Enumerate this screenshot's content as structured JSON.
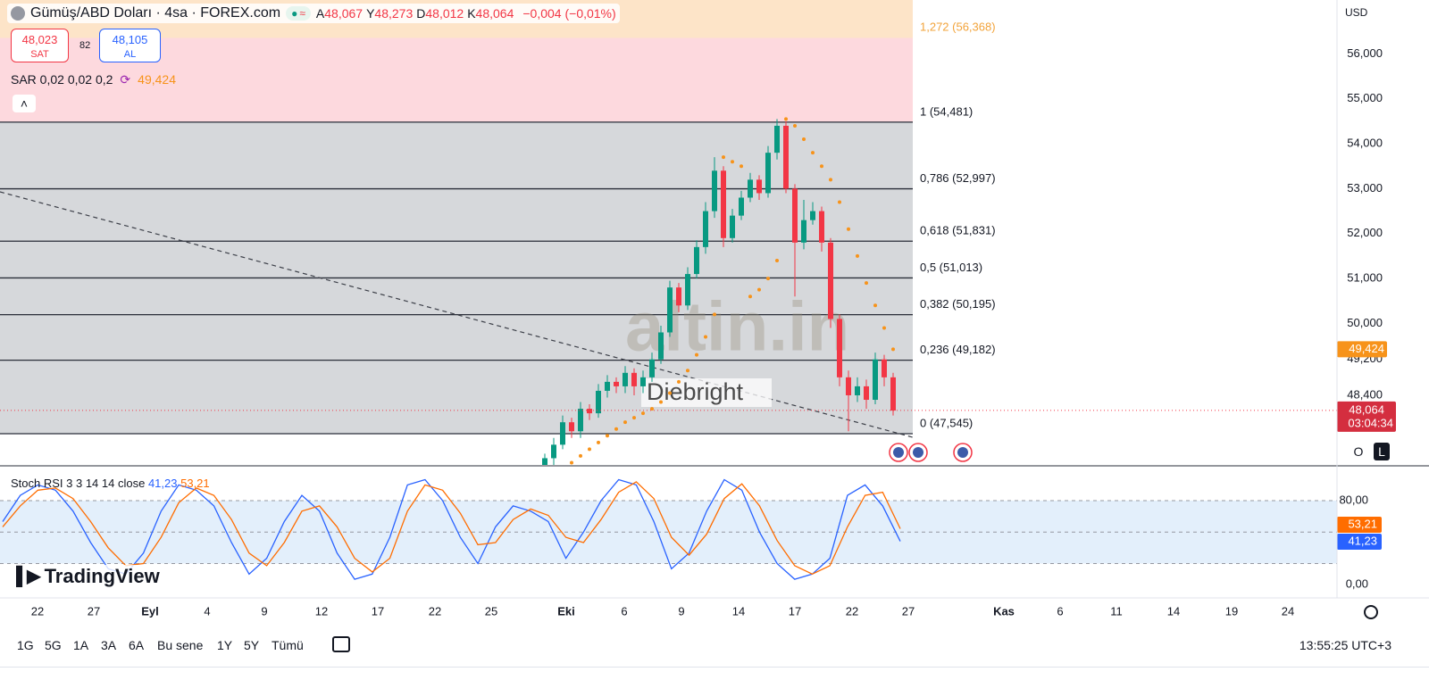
{
  "header": {
    "title": "Gümüş/ABD Doları · 4sa · FOREX.com",
    "ohlc_legend": [
      {
        "key": "A",
        "value": "48,067"
      },
      {
        "key": "Y",
        "value": "48,273"
      },
      {
        "key": "D",
        "value": "48,012"
      },
      {
        "key": "K",
        "value": "48,064"
      }
    ],
    "change": "−0,004 (−0,01%)",
    "sell": {
      "price": "48,023",
      "label": "SAT"
    },
    "spread": "82",
    "buy": {
      "price": "48,105",
      "label": "AL"
    },
    "currency": "USD",
    "scale_buttons": [
      "O",
      "L"
    ]
  },
  "chart_data": [
    {
      "type": "candlestick",
      "up_color": "#089981",
      "down_color": "#f23645",
      "open": [
        46.8,
        47.0,
        47.3,
        47.8,
        47.6,
        48.1,
        48.0,
        48.5,
        48.7,
        48.6,
        48.9,
        48.6,
        48.8,
        49.2,
        49.8,
        50.8,
        50.4,
        51.1,
        51.7,
        52.5,
        53.4,
        51.9,
        52.4,
        52.8,
        53.2,
        52.9,
        53.8,
        54.4,
        53.0,
        51.8,
        52.3,
        52.5,
        51.8,
        50.1,
        48.8,
        48.4,
        48.6,
        48.3,
        49.2,
        48.8
      ],
      "high": [
        47.1,
        47.45,
        47.95,
        47.9,
        48.25,
        48.2,
        48.65,
        48.85,
        48.8,
        49.05,
        49.0,
        48.95,
        49.35,
        49.95,
        50.95,
        50.9,
        51.25,
        51.85,
        52.7,
        53.7,
        53.5,
        52.55,
        52.95,
        53.35,
        53.3,
        53.95,
        54.55,
        54.5,
        53.1,
        52.75,
        52.7,
        52.6,
        51.9,
        50.2,
        48.95,
        48.8,
        48.75,
        49.35,
        49.3,
        48.9
      ],
      "low": [
        46.7,
        46.85,
        47.2,
        47.45,
        47.45,
        47.85,
        47.9,
        48.35,
        48.45,
        48.45,
        48.4,
        48.45,
        48.7,
        49.1,
        49.7,
        50.25,
        50.3,
        51.0,
        51.55,
        52.35,
        51.7,
        51.8,
        52.3,
        52.7,
        52.75,
        52.8,
        53.65,
        52.9,
        50.6,
        51.65,
        52.2,
        51.6,
        49.9,
        48.6,
        47.6,
        48.25,
        48.1,
        48.2,
        48.6,
        47.95
      ],
      "close": [
        47.0,
        47.3,
        47.8,
        47.6,
        48.1,
        48.0,
        48.5,
        48.7,
        48.6,
        48.9,
        48.6,
        48.8,
        49.2,
        49.8,
        50.8,
        50.4,
        51.1,
        51.7,
        52.5,
        53.4,
        51.9,
        52.4,
        52.8,
        53.2,
        52.9,
        53.8,
        54.4,
        53.0,
        51.8,
        52.3,
        52.5,
        51.8,
        50.1,
        48.8,
        48.4,
        48.6,
        48.3,
        49.2,
        48.8,
        48.06
      ],
      "sar": {
        "name": "SAR 0,02 0,02 0,2",
        "color": "#f7931a",
        "values": [
          46.6,
          46.65,
          46.75,
          46.9,
          47.05,
          47.2,
          47.35,
          47.5,
          47.65,
          47.8,
          47.9,
          48.0,
          48.1,
          48.25,
          48.45,
          48.7,
          48.95,
          49.3,
          49.7,
          50.2,
          53.7,
          53.6,
          53.5,
          50.6,
          50.75,
          51.0,
          51.4,
          54.55,
          54.4,
          54.1,
          53.8,
          53.5,
          53.2,
          52.7,
          52.1,
          51.5,
          50.9,
          50.4,
          49.9,
          49.424
        ],
        "last": {
          "value": 49.424,
          "label": "49,424"
        }
      },
      "last_price": {
        "value": 48.064,
        "label": "48,064"
      },
      "countdown": "03:04:34",
      "fib_levels": [
        {
          "value": 56.368,
          "label": "1,272 (56,368)",
          "color": "#f2a33a",
          "fill": "#fde4c8"
        },
        {
          "value": 54.481,
          "label": "1 (54,481)",
          "color": "#131722",
          "fill": "#fdd9de"
        },
        {
          "value": 52.997,
          "label": "0,786 (52,997)",
          "color": "#131722",
          "fill": "#d6d8db"
        },
        {
          "value": 51.831,
          "label": "0,618 (51,831)",
          "color": "#131722",
          "fill": "#d6d8db"
        },
        {
          "value": 51.013,
          "label": "0,5 (51,013)",
          "color": "#131722",
          "fill": "#d6d8db"
        },
        {
          "value": 50.195,
          "label": "0,382 (50,195)",
          "color": "#131722",
          "fill": "#d6d8db"
        },
        {
          "value": 49.182,
          "label": "0,236 (49,182)",
          "color": "#131722",
          "fill": "#d6d8db"
        },
        {
          "value": 47.545,
          "label": "0 (47,545)",
          "color": "#131722",
          "fill": "#d6d8db"
        }
      ],
      "ylim": [
        46.85,
        57.2
      ],
      "yticks": [
        {
          "value": 48.4,
          "label": "48,400"
        },
        {
          "value": 49.2,
          "label": "49,200"
        },
        {
          "value": 50,
          "label": "50,000"
        },
        {
          "value": 51,
          "label": "51,000"
        },
        {
          "value": 52,
          "label": "52,000"
        },
        {
          "value": 53,
          "label": "53,000"
        },
        {
          "value": 54,
          "label": "54,000"
        },
        {
          "value": 55,
          "label": "55,000"
        },
        {
          "value": 56,
          "label": "56,000"
        }
      ],
      "watermark": [
        "altin.in",
        "Diebright"
      ]
    },
    {
      "type": "line",
      "title": "Stoch RSI 3 3 14 14 close",
      "series": [
        {
          "color": "#2962ff",
          "values": [
            60,
            85,
            95,
            90,
            70,
            40,
            15,
            10,
            30,
            70,
            95,
            90,
            75,
            40,
            10,
            25,
            60,
            85,
            70,
            30,
            5,
            10,
            45,
            95,
            100,
            80,
            45,
            20,
            55,
            75,
            70,
            60,
            25,
            50,
            80,
            100,
            95,
            60,
            15,
            30,
            70,
            100,
            90,
            50,
            20,
            5,
            10,
            25,
            85,
            95,
            75,
            41.23
          ],
          "last": {
            "value": 41.23,
            "label": "41,23"
          }
        },
        {
          "color": "#ff6d00",
          "values": [
            55,
            75,
            90,
            92,
            82,
            60,
            35,
            18,
            20,
            45,
            78,
            92,
            85,
            62,
            30,
            18,
            40,
            70,
            75,
            55,
            25,
            12,
            25,
            70,
            95,
            90,
            68,
            38,
            40,
            62,
            72,
            66,
            45,
            40,
            62,
            88,
            98,
            82,
            45,
            28,
            48,
            82,
            96,
            75,
            42,
            18,
            10,
            18,
            55,
            85,
            88,
            53.21
          ],
          "last": {
            "value": 53.21,
            "label": "53,21"
          }
        }
      ],
      "ylim": [
        -8.5,
        106.4
      ],
      "yticks": [
        {
          "value": 0,
          "label": "0,00"
        },
        {
          "value": 80,
          "label": "80,00"
        }
      ],
      "band_levels": [
        20,
        50,
        80
      ],
      "band_color": "#e3effb"
    }
  ],
  "time_axis": [
    "22",
    "27",
    "Eyl",
    "4",
    "9",
    "12",
    "17",
    "22",
    "25",
    "Eki",
    "6",
    "9",
    "14",
    "17",
    "22",
    "27",
    "Kas",
    "6",
    "11",
    "14",
    "19",
    "24"
  ],
  "brand": "TradingView",
  "toolbar": {
    "ranges": [
      "1G",
      "5G",
      "1A",
      "3A",
      "6A",
      "Bu sene",
      "1Y",
      "5Y",
      "Tümü"
    ],
    "clock": "13:55:25 UTC+3"
  }
}
